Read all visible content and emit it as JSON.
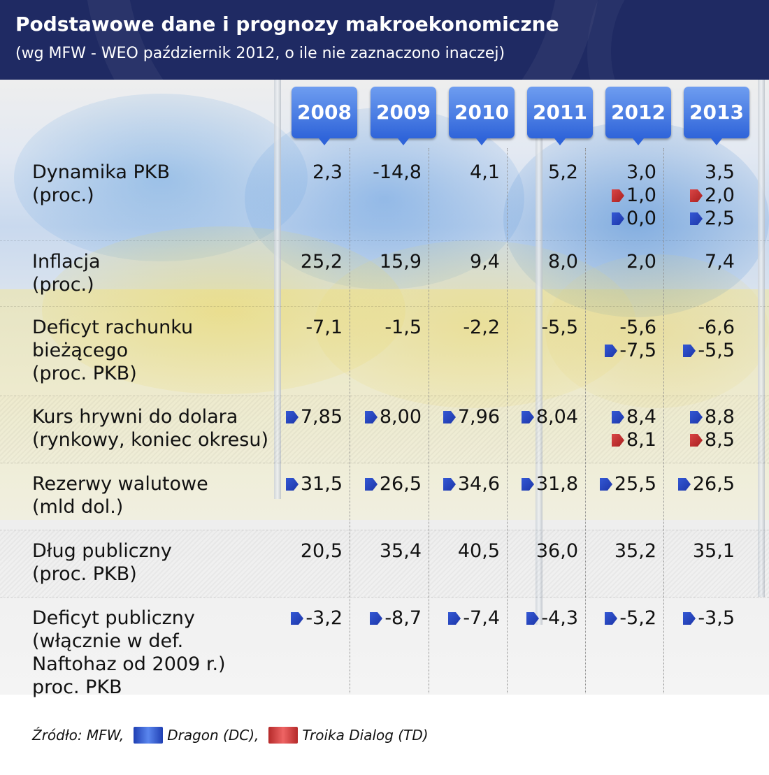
{
  "title": "Podstawowe dane i prognozy makroekonomiczne",
  "subtitle": "(wg MFW - WEO październik 2012, o ile nie zaznaczono inaczej)",
  "colors": {
    "header_bg": "#1f2a63",
    "dragon": "#3358d4",
    "troika": "#d94545"
  },
  "chart_data": {
    "type": "table",
    "columns": [
      "2008",
      "2009",
      "2010",
      "2011",
      "2012",
      "2013"
    ],
    "rows": [
      {
        "label_lines": [
          "Dynamika PKB",
          "(proc.)"
        ],
        "cells": [
          [
            {
              "value": "2,3"
            }
          ],
          [
            {
              "value": "-14,8"
            }
          ],
          [
            {
              "value": "4,1"
            }
          ],
          [
            {
              "value": "5,2"
            }
          ],
          [
            {
              "value": "3,0"
            },
            {
              "value": "1,0",
              "source": "troika"
            },
            {
              "value": "0,0",
              "source": "dragon"
            }
          ],
          [
            {
              "value": "3,5"
            },
            {
              "value": "2,0",
              "source": "troika"
            },
            {
              "value": "2,5",
              "source": "dragon"
            }
          ]
        ]
      },
      {
        "label_lines": [
          "Inflacja",
          "(proc.)"
        ],
        "cells": [
          [
            {
              "value": "25,2"
            }
          ],
          [
            {
              "value": "15,9"
            }
          ],
          [
            {
              "value": "9,4"
            }
          ],
          [
            {
              "value": "8,0"
            }
          ],
          [
            {
              "value": "2,0"
            }
          ],
          [
            {
              "value": "7,4"
            }
          ]
        ]
      },
      {
        "label_lines": [
          "Deficyt rachunku",
          "bieżącego",
          "(proc. PKB)"
        ],
        "cells": [
          [
            {
              "value": "-7,1"
            }
          ],
          [
            {
              "value": "-1,5"
            }
          ],
          [
            {
              "value": "-2,2"
            }
          ],
          [
            {
              "value": "-5,5"
            }
          ],
          [
            {
              "value": "-5,6"
            },
            {
              "value": "-7,5",
              "source": "dragon"
            }
          ],
          [
            {
              "value": "-6,6"
            },
            {
              "value": "-5,5",
              "source": "dragon"
            }
          ]
        ]
      },
      {
        "label_lines": [
          "Kurs hrywni do dolara",
          "(rynkowy, koniec okresu)"
        ],
        "cells": [
          [
            {
              "value": "7,85",
              "source": "dragon"
            }
          ],
          [
            {
              "value": "8,00",
              "source": "dragon"
            }
          ],
          [
            {
              "value": "7,96",
              "source": "dragon"
            }
          ],
          [
            {
              "value": "8,04",
              "source": "dragon"
            }
          ],
          [
            {
              "value": "8,4",
              "source": "dragon"
            },
            {
              "value": "8,1",
              "source": "troika"
            }
          ],
          [
            {
              "value": "8,8",
              "source": "dragon"
            },
            {
              "value": "8,5",
              "source": "troika"
            }
          ]
        ]
      },
      {
        "label_lines": [
          "Rezerwy walutowe",
          "(mld dol.)"
        ],
        "cells": [
          [
            {
              "value": "31,5",
              "source": "dragon"
            }
          ],
          [
            {
              "value": "26,5",
              "source": "dragon"
            }
          ],
          [
            {
              "value": "34,6",
              "source": "dragon"
            }
          ],
          [
            {
              "value": "31,8",
              "source": "dragon"
            }
          ],
          [
            {
              "value": "25,5",
              "source": "dragon"
            }
          ],
          [
            {
              "value": "26,5",
              "source": "dragon"
            }
          ]
        ]
      },
      {
        "label_lines": [
          "Dług publiczny",
          "(proc. PKB)"
        ],
        "cells": [
          [
            {
              "value": "20,5"
            }
          ],
          [
            {
              "value": "35,4"
            }
          ],
          [
            {
              "value": "40,5"
            }
          ],
          [
            {
              "value": "36,0"
            }
          ],
          [
            {
              "value": "35,2"
            }
          ],
          [
            {
              "value": "35,1"
            }
          ]
        ]
      },
      {
        "label_lines": [
          "Deficyt publiczny",
          "(włącznie w def.",
          "Naftohaz od 2009 r.)",
          "proc. PKB"
        ],
        "cells": [
          [
            {
              "value": "-3,2",
              "source": "dragon"
            }
          ],
          [
            {
              "value": "-8,7",
              "source": "dragon"
            }
          ],
          [
            {
              "value": "-7,4",
              "source": "dragon"
            }
          ],
          [
            {
              "value": "-4,3",
              "source": "dragon"
            }
          ],
          [
            {
              "value": "-5,2",
              "source": "dragon"
            }
          ],
          [
            {
              "value": "-3,5",
              "source": "dragon"
            }
          ]
        ]
      }
    ],
    "legend": [
      {
        "key": "dragon",
        "label": "Dragon (DC),"
      },
      {
        "key": "troika",
        "label": "Troika Dialog (TD)"
      }
    ]
  },
  "footer": {
    "source_label": "Źródło: MFW,",
    "dragon_label": "Dragon (DC),",
    "troika_label": "Troika Dialog (TD)"
  }
}
